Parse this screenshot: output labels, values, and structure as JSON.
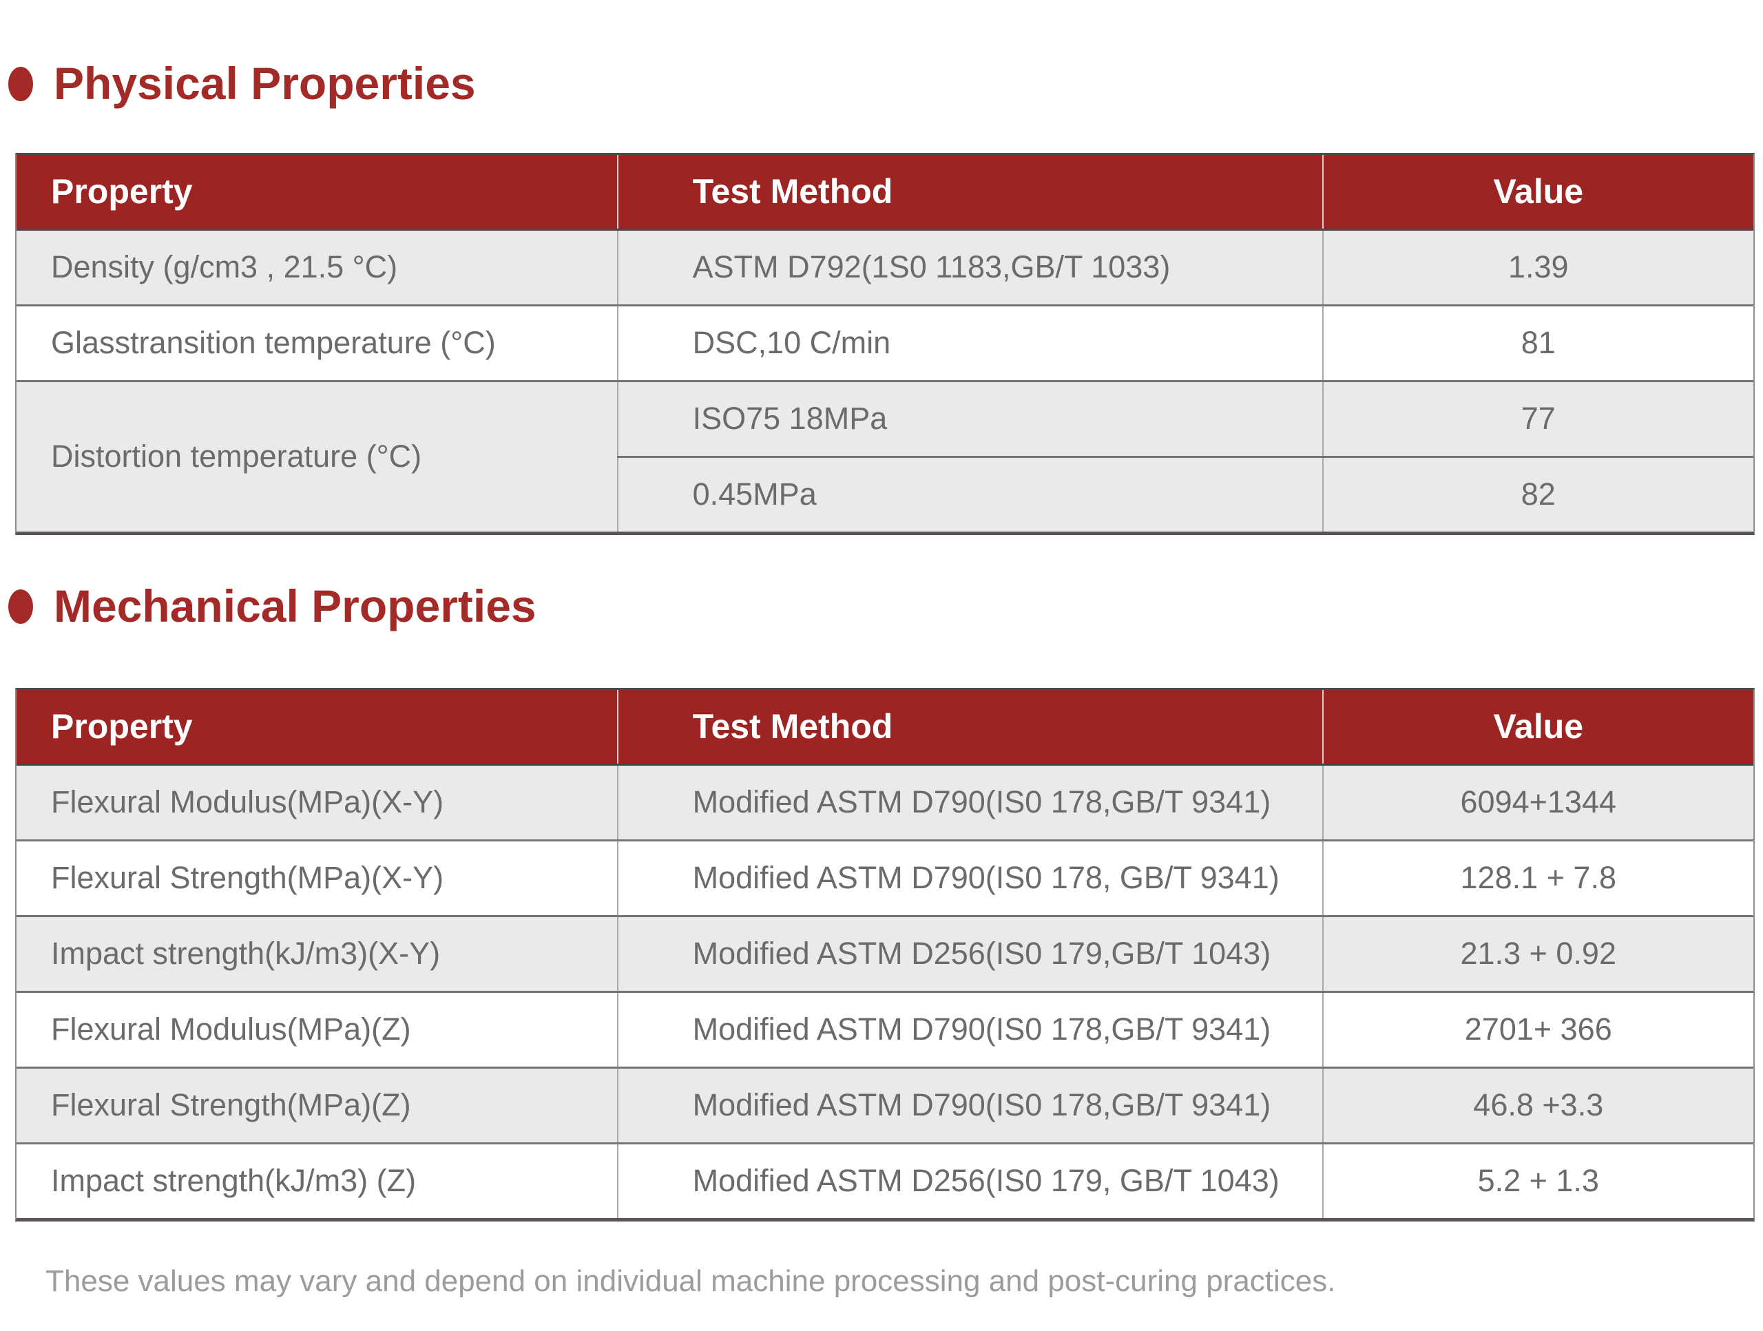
{
  "colors": {
    "table_header_red": "#9c2423",
    "section_title_red": "#a32a26",
    "row_alt_gray": "#eaeaeb",
    "body_text_gray": "#6b6b6b",
    "footnote_gray": "#9c9c9c"
  },
  "physical": {
    "title": "Physical Properties",
    "columns": [
      "Property",
      "Test Method",
      "Value"
    ],
    "rows": [
      {
        "property": "Density (g/cm3 , 21.5 °C)",
        "test_method": "ASTM D792(1S0 1183,GB/T 1033)",
        "value": "1.39"
      },
      {
        "property": "Glasstransition temperature (°C)",
        "test_method": "DSC,10 C/min",
        "value": "81"
      },
      {
        "property": "Distortion temperature (°C)",
        "sub_rows": [
          {
            "test_method": "ISO75 18MPa",
            "value": "77"
          },
          {
            "test_method": "0.45MPa",
            "value": "82"
          }
        ]
      }
    ]
  },
  "mechanical": {
    "title": "Mechanical Properties",
    "columns": [
      "Property",
      "Test Method",
      "Value"
    ],
    "rows": [
      {
        "property": "Flexural Modulus(MPa)(X-Y)",
        "test_method": "Modified ASTM D790(IS0 178,GB/T 9341)",
        "value": "6094+1344"
      },
      {
        "property": "Flexural Strength(MPa)(X-Y)",
        "test_method": "Modified ASTM D790(IS0 178, GB/T 9341)",
        "value": "128.1 + 7.8"
      },
      {
        "property": "Impact strength(kJ/m3)(X-Y)",
        "test_method": "Modified ASTM D256(IS0 179,GB/T 1043)",
        "value": "21.3 + 0.92"
      },
      {
        "property": "Flexural Modulus(MPa)(Z)",
        "test_method": "Modified ASTM D790(IS0 178,GB/T 9341)",
        "value": "2701+ 366"
      },
      {
        "property": "Flexural Strength(MPa)(Z)",
        "test_method": "Modified ASTM D790(IS0 178,GB/T 9341)",
        "value": "46.8 +3.3"
      },
      {
        "property": "Impact strength(kJ/m3) (Z)",
        "test_method": "Modified ASTM D256(IS0 179, GB/T 1043)",
        "value": "5.2 + 1.3"
      }
    ]
  },
  "footnote": "These values may vary and depend on individual machine processing and post-curing practices."
}
